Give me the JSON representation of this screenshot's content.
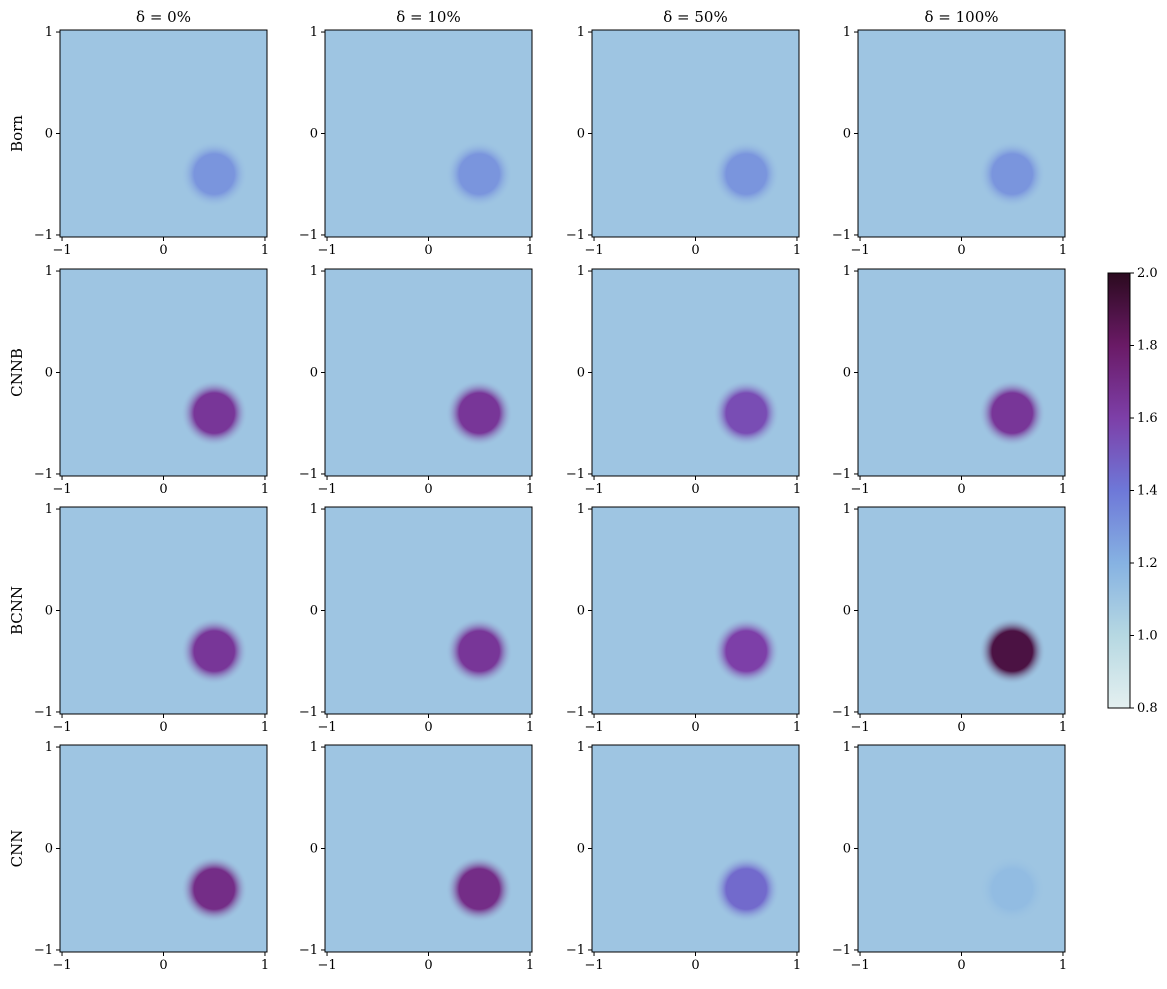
{
  "chart_data": {
    "type": "heatmap",
    "col_titles": [
      "δ = 0%",
      "δ = 10%",
      "δ = 50%",
      "δ = 100%"
    ],
    "row_labels": [
      "Born",
      "CNNB",
      "BCNN",
      "CNN"
    ],
    "xlim": [
      -1.02,
      1.02
    ],
    "ylim": [
      -1.02,
      1.02
    ],
    "xticks": [
      {
        "value": -1,
        "label": "−1"
      },
      0,
      1
    ],
    "yticks": [
      {
        "value": -1,
        "label": "−1"
      },
      0,
      1
    ],
    "background": 1.1,
    "inclusion": {
      "x": 0.5,
      "y": -0.4,
      "r": 0.22
    },
    "peaks": [
      [
        1.3,
        1.3,
        1.3,
        1.3
      ],
      [
        1.65,
        1.65,
        1.55,
        1.65
      ],
      [
        1.65,
        1.65,
        1.6,
        1.9
      ],
      [
        1.7,
        1.7,
        1.45,
        1.15
      ]
    ],
    "clim": [
      0.8,
      2.0
    ],
    "cticks": [
      0.8,
      {
        "value": 1.0,
        "label": "1.0"
      },
      1.2,
      1.4,
      1.6,
      1.8,
      {
        "value": 2.0,
        "label": "2.0"
      }
    ],
    "cmap": [
      "#e4f0f0",
      "#b6d8e2",
      "#86b2e2",
      "#6e78d8",
      "#7d3fa8",
      "#6a1a66",
      "#2b0a1f"
    ]
  }
}
